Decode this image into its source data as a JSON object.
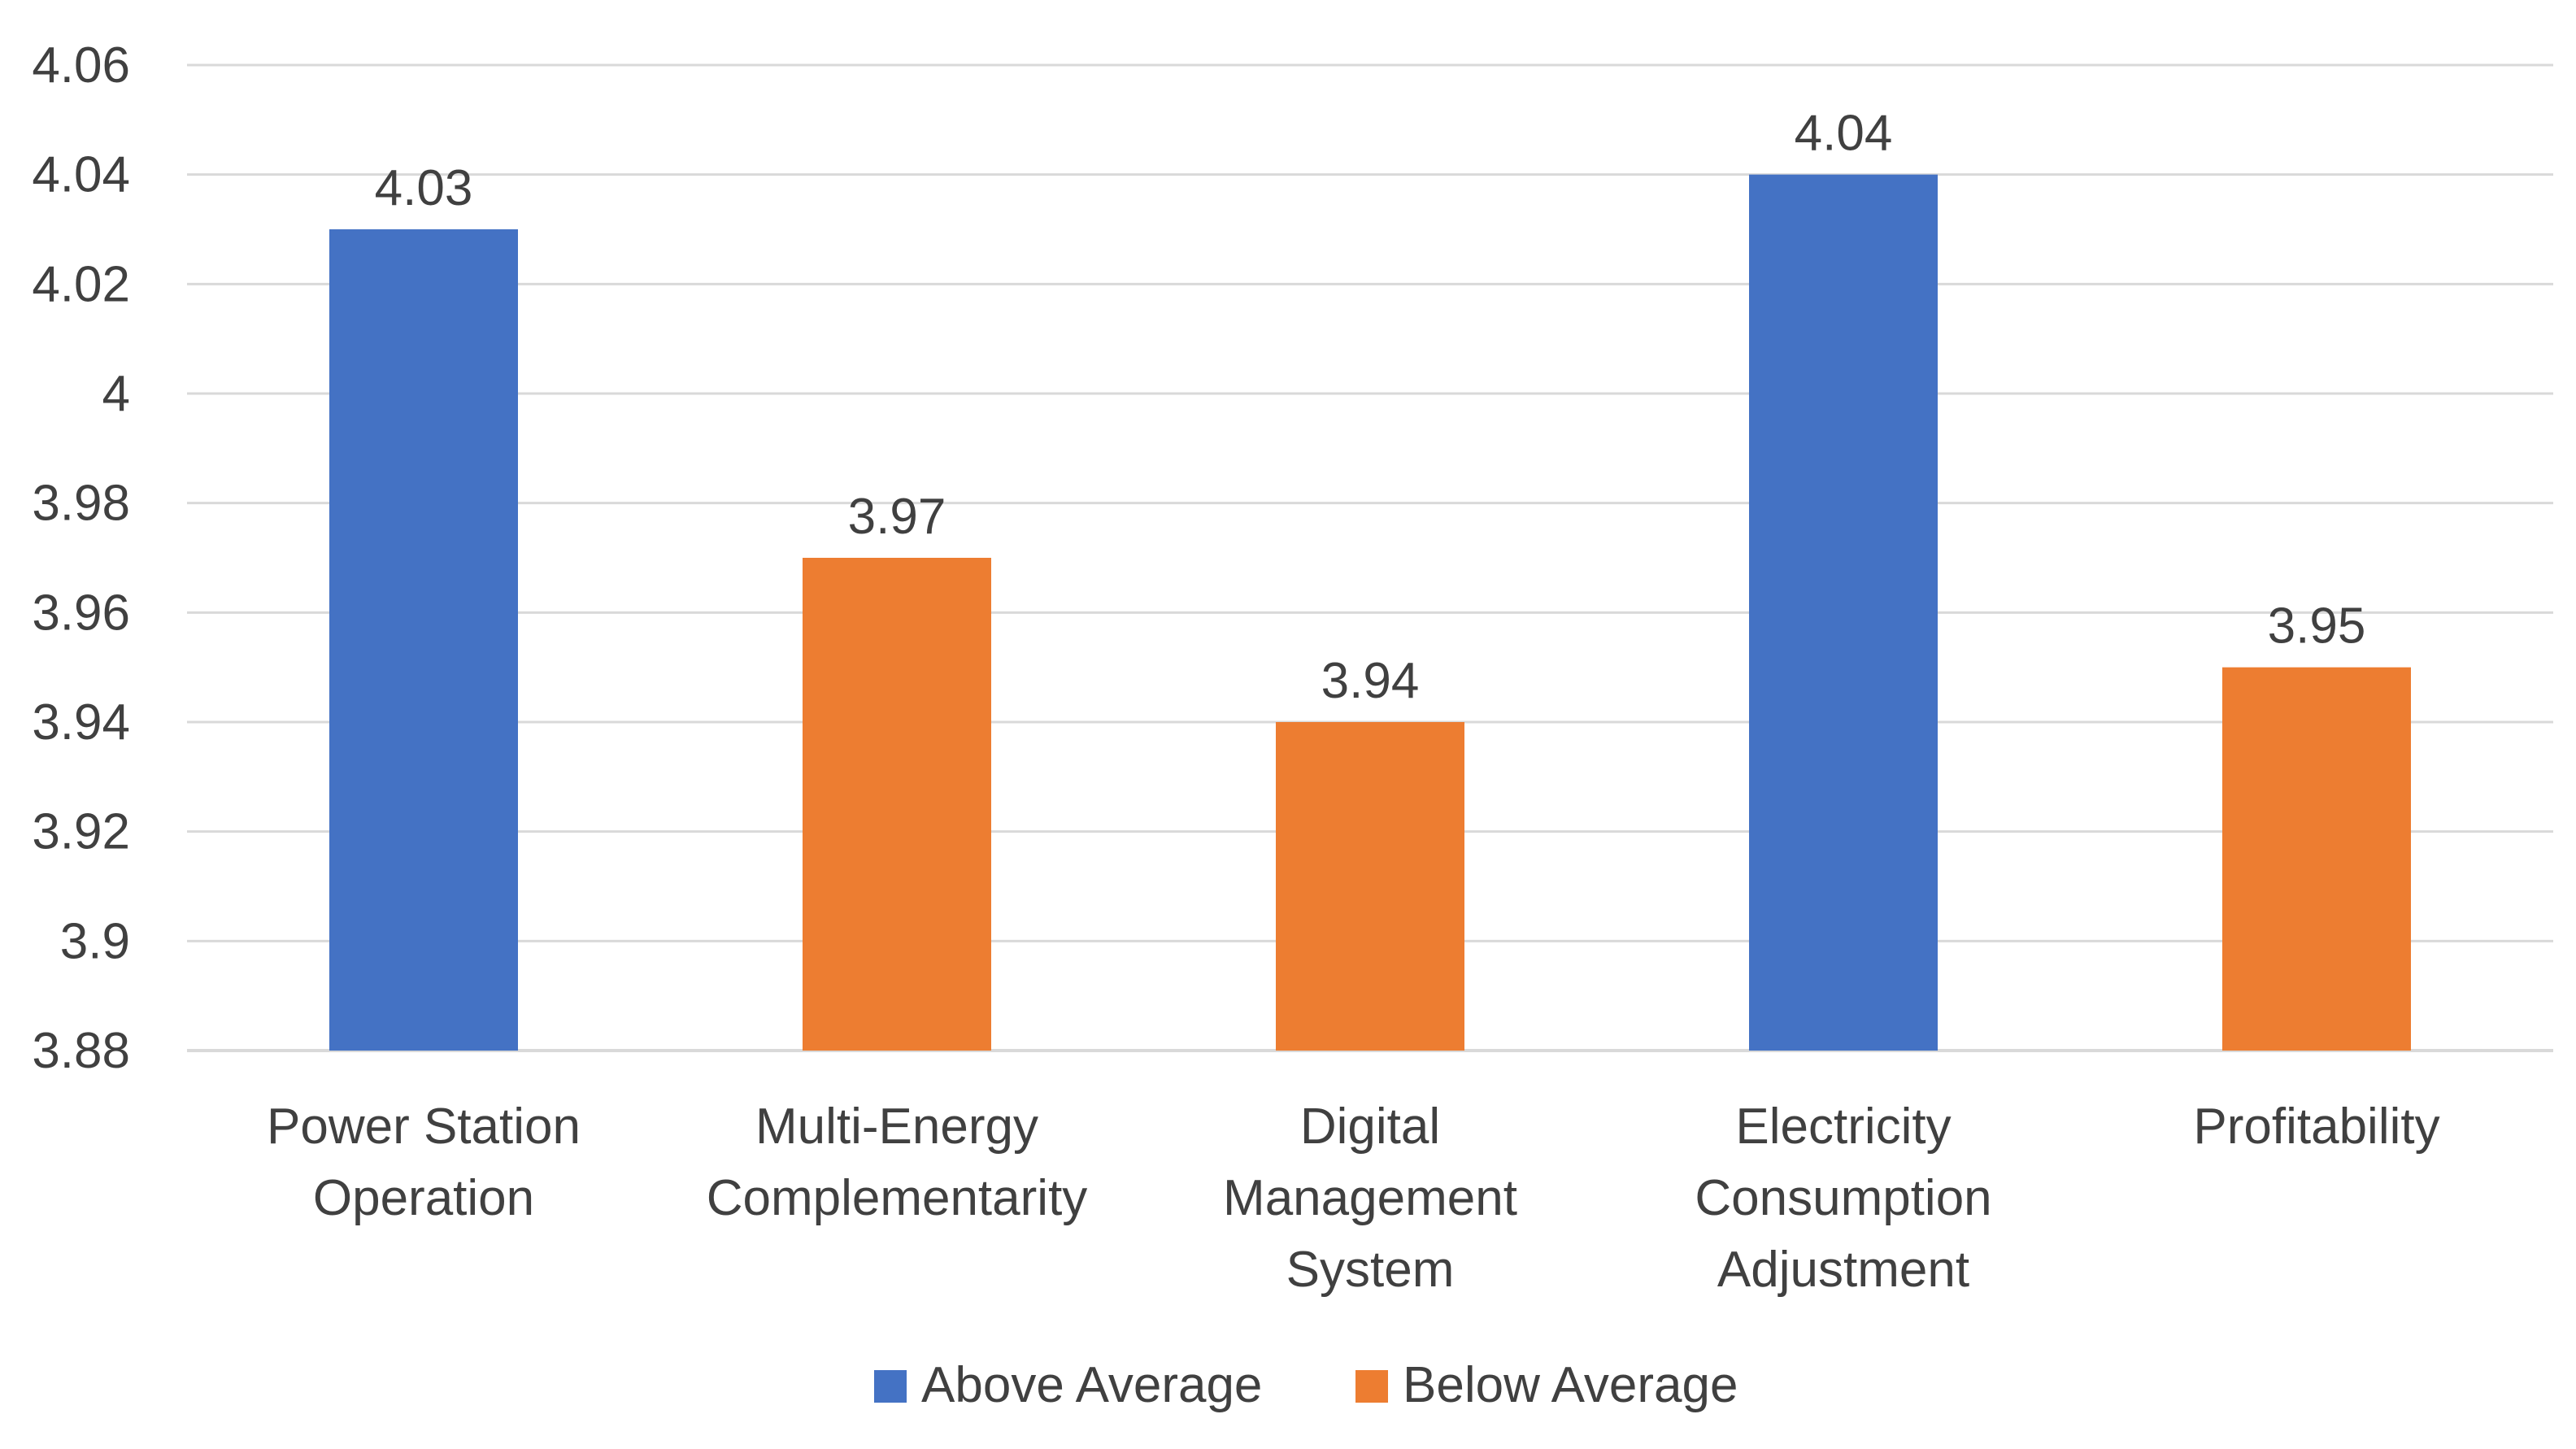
{
  "chart_data": {
    "type": "bar",
    "title": "",
    "xlabel": "",
    "ylabel": "",
    "categories": [
      [
        "Power Station",
        "Operation"
      ],
      [
        "Multi-Energy",
        "Complementarity"
      ],
      [
        "Digital",
        "Management",
        "System"
      ],
      [
        "Electricity",
        "Consumption",
        "Adjustment"
      ],
      [
        "Profitability"
      ]
    ],
    "values": [
      4.03,
      3.97,
      3.94,
      4.04,
      3.95
    ],
    "value_labels": [
      "4.03",
      "3.97",
      "3.94",
      "4.04",
      "3.95"
    ],
    "series_assignment": [
      "Above Average",
      "Below Average",
      "Below Average",
      "Above Average",
      "Below Average"
    ],
    "legend": [
      {
        "name": "Above Average",
        "color": "#4472c4"
      },
      {
        "name": "Below Average",
        "color": "#ed7d31"
      }
    ],
    "legend_position": "bottom",
    "ylim": [
      3.88,
      4.06
    ],
    "yticks": [
      3.88,
      3.9,
      3.92,
      3.94,
      3.96,
      3.98,
      4,
      4.02,
      4.04,
      4.06
    ],
    "ytick_labels": [
      "3.88",
      "3.9",
      "3.92",
      "3.94",
      "3.96",
      "3.98",
      "4",
      "4.02",
      "4.04",
      "4.06"
    ],
    "grid": true
  },
  "colors": {
    "above": "#4472c4",
    "below": "#ed7d31",
    "grid": "#d9d9d9",
    "text": "#404040"
  }
}
